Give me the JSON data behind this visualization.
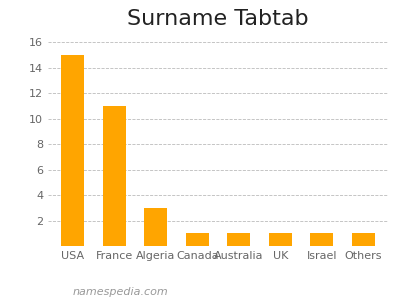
{
  "title": "Surname Tabtab",
  "categories": [
    "USA",
    "France",
    "Algeria",
    "Canada",
    "Australia",
    "UK",
    "Israel",
    "Others"
  ],
  "values": [
    15,
    11,
    3,
    1,
    1,
    1,
    1,
    1
  ],
  "bar_color": "#FFA500",
  "ylim": [
    0,
    16.5
  ],
  "yticks": [
    0,
    2,
    4,
    6,
    8,
    10,
    12,
    14,
    16
  ],
  "title_fontsize": 16,
  "tick_fontsize": 8,
  "watermark": "namespedia.com",
  "background_color": "#ffffff",
  "grid_color": "#bbbbbb"
}
